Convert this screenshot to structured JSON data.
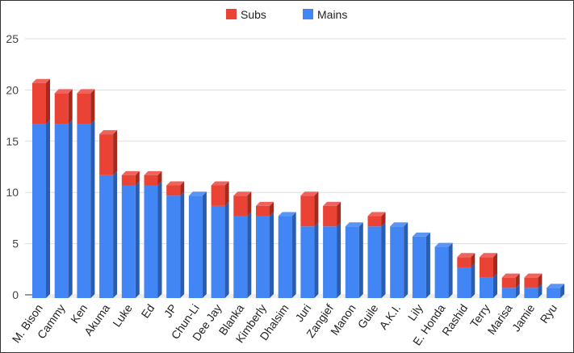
{
  "chart_data": {
    "type": "bar",
    "stacked": true,
    "three_d": true,
    "title": "",
    "xlabel": "",
    "ylabel": "",
    "ylim": [
      0,
      25
    ],
    "yticks": [
      0,
      5,
      10,
      15,
      20,
      25
    ],
    "grid": true,
    "legend_position": "top",
    "categories": [
      "M. Bison",
      "Cammy",
      "Ken",
      "Akuma",
      "Luke",
      "Ed",
      "JP",
      "Chun-Li",
      "Dee Jay",
      "Blanka",
      "Kimberly",
      "Dhalsim",
      "Juri",
      "Zangief",
      "Manon",
      "Guile",
      "A.K.I.",
      "Lily",
      "E. Honda",
      "Rashid",
      "Terry",
      "Marisa",
      "Jamie",
      "Ryu"
    ],
    "series": [
      {
        "name": "Mains",
        "color": "#4285f4",
        "side": "#2a5db0",
        "values": [
          17,
          17,
          17,
          12,
          11,
          11,
          10,
          10,
          9,
          8,
          8,
          8,
          7,
          7,
          7,
          7,
          7,
          6,
          5,
          3,
          2,
          1,
          1,
          1
        ]
      },
      {
        "name": "Subs",
        "color": "#ea4335",
        "side": "#a52a1e",
        "values": [
          4,
          3,
          3,
          4,
          1,
          1,
          1,
          0,
          2,
          2,
          1,
          0,
          3,
          2,
          0,
          1,
          0,
          0,
          0,
          1,
          2,
          1,
          1,
          0
        ]
      }
    ],
    "legend": [
      "Subs",
      "Mains"
    ]
  }
}
